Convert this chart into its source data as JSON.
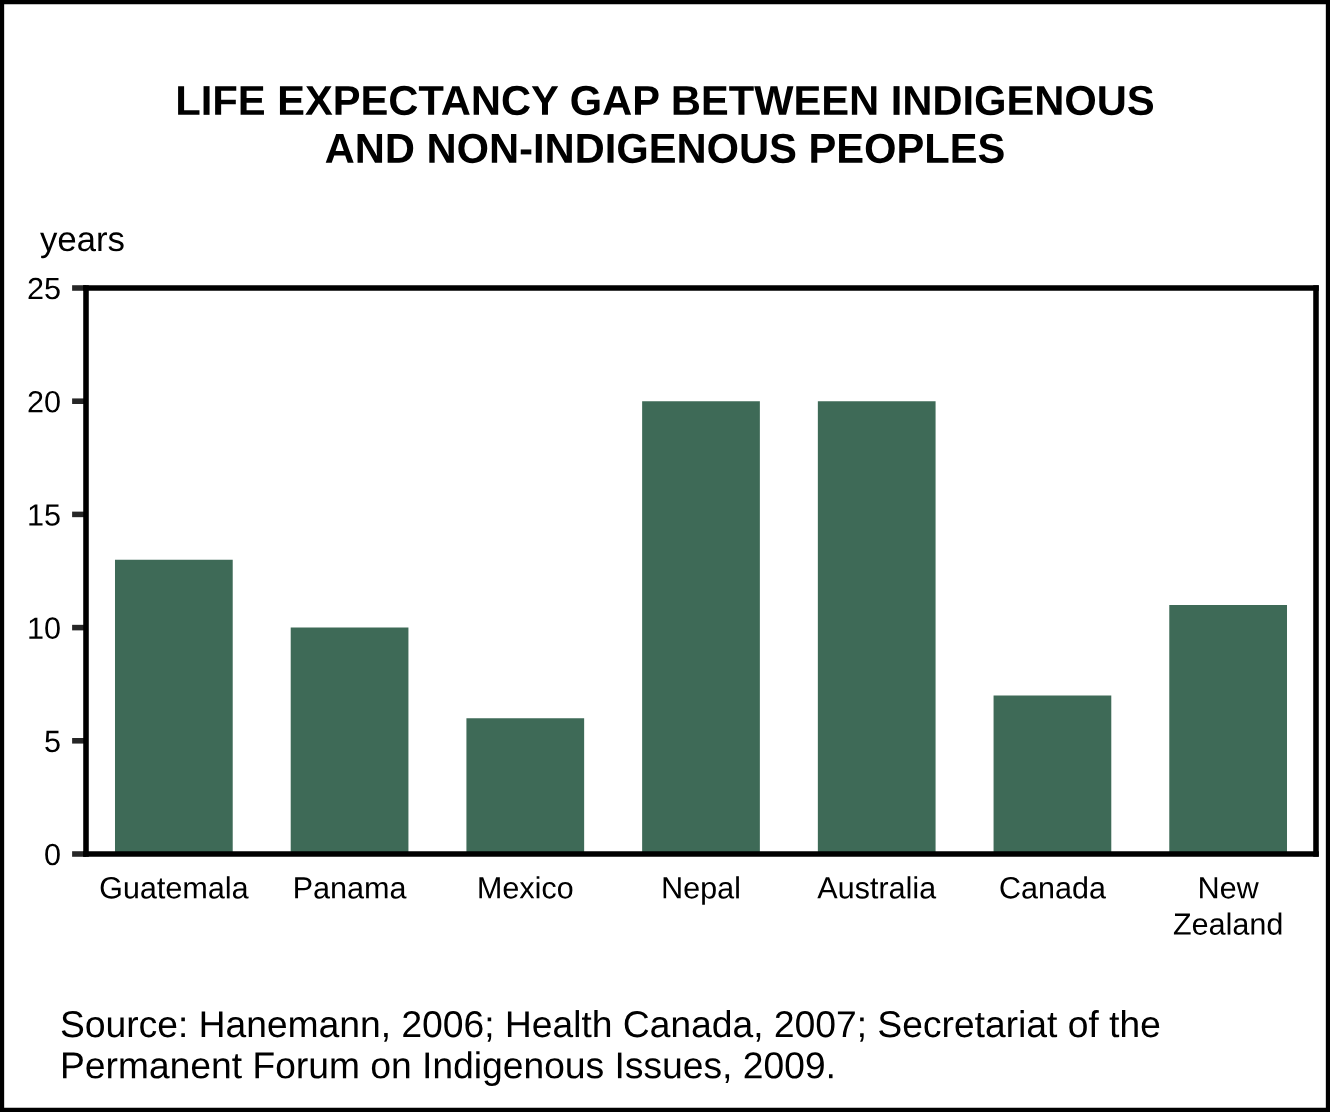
{
  "chart_data": {
    "type": "bar",
    "title": "LIFE EXPECTANCY GAP BETWEEN INDIGENOUS\nAND NON-INDIGENOUS PEOPLES",
    "ylabel": "years",
    "categories": [
      "Guatemala",
      "Panama",
      "Mexico",
      "Nepal",
      "Australia",
      "Canada",
      "New\nZealand"
    ],
    "values": [
      13,
      10,
      6,
      20,
      20,
      7,
      11
    ],
    "color": "#3e6a57",
    "ylim": [
      0,
      25
    ],
    "yticks": [
      0,
      5,
      10,
      15,
      20,
      25
    ],
    "grid": false,
    "legend": false,
    "annotations": [
      "Source: Hanemann, 2006; Health Canada, 2007; Secretariat of the\nPermanent Forum on Indigenous Issues, 2009."
    ]
  }
}
